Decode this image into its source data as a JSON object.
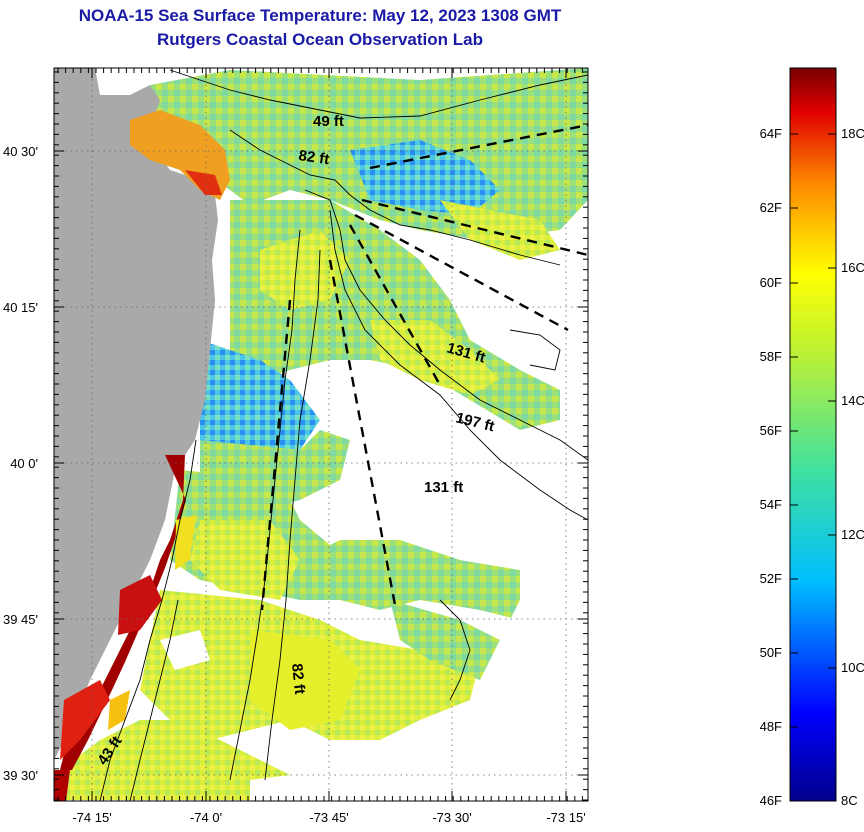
{
  "header": {
    "title": "NOAA-15 Sea Surface Temperature:  May 12, 2023 1308 GMT",
    "subtitle": "Rutgers Coastal Ocean Observation Lab"
  },
  "axes": {
    "lon_ticks": [
      "-74 15'",
      "-74 0'",
      "-73 45'",
      "-73 30'",
      "-73 15'"
    ],
    "lat_ticks": [
      "40 30'",
      "40 15'",
      "40 0'",
      "39 45'",
      "39 30'"
    ]
  },
  "isobaths": {
    "contour_49": "49 ft",
    "contour_82_north": "82 ft",
    "contour_82_south": "82 ft",
    "contour_43": "43 ft",
    "contour_131_upper": "131 ft",
    "contour_131_lower": "131 ft",
    "contour_197": "197 ft"
  },
  "colorbar": {
    "fahrenheit": [
      "64F",
      "62F",
      "60F",
      "58F",
      "56F",
      "54F",
      "52F",
      "50F",
      "48F",
      "46F"
    ],
    "celsius": [
      "18C",
      "16C",
      "14C",
      "12C",
      "10C",
      "8C"
    ]
  },
  "colors": {
    "title": "#1a1aa6",
    "land": "#a9a9a9",
    "warm": "#8b0000",
    "cool": "#00008b",
    "mid": "#f5e60a"
  }
}
